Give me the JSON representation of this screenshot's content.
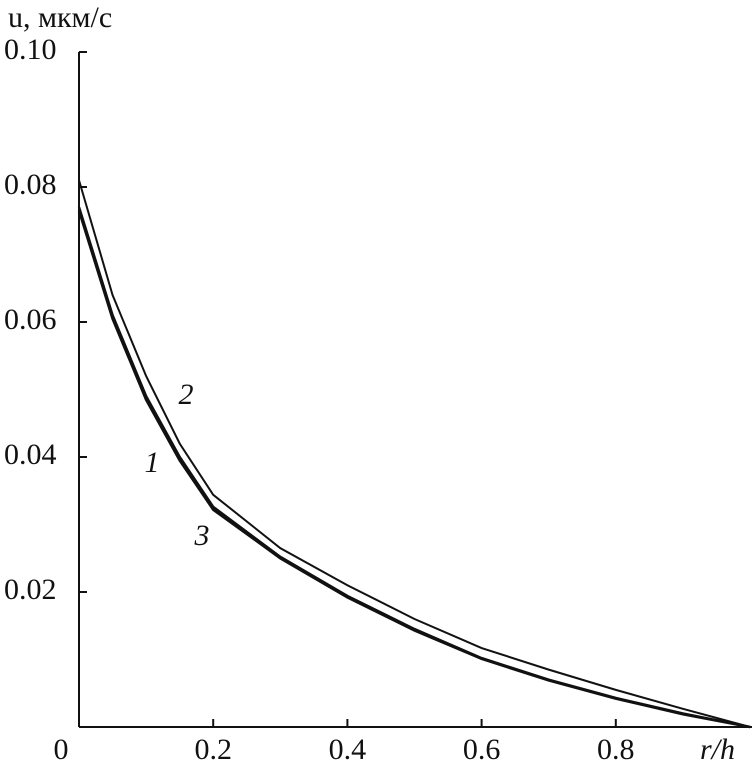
{
  "chart_data": {
    "type": "line",
    "y_label": "u, мкм/с",
    "x_label": "r/h",
    "x": [
      0,
      0.05,
      0.1,
      0.15,
      0.2,
      0.3,
      0.4,
      0.5,
      0.6,
      0.7,
      0.8,
      0.9,
      1.0
    ],
    "series": [
      {
        "name": "1",
        "color": "#111111",
        "values": [
          0.077,
          0.061,
          0.049,
          0.04,
          0.0326,
          0.0252,
          0.0194,
          0.0145,
          0.0102,
          0.007,
          0.0043,
          0.002,
          0
        ]
      },
      {
        "name": "2",
        "color": "#111111",
        "values": [
          0.081,
          0.064,
          0.052,
          0.042,
          0.0344,
          0.0265,
          0.021,
          0.016,
          0.0117,
          0.0085,
          0.0055,
          0.0027,
          0
        ]
      },
      {
        "name": "3",
        "color": "#111111",
        "values": [
          0.0765,
          0.0605,
          0.0485,
          0.0395,
          0.0322,
          0.025,
          0.0192,
          0.0143,
          0.0101,
          0.0069,
          0.0042,
          0.0019,
          0
        ]
      }
    ],
    "xlim": [
      0,
      1
    ],
    "ylim": [
      0,
      0.1
    ],
    "xticks": [
      0,
      0.2,
      0.4,
      0.6,
      0.8
    ],
    "yticks": [
      {
        "value": 0.1,
        "label": "0.10"
      },
      0.08,
      0.06,
      0.04,
      0.02
    ],
    "grid": false
  }
}
